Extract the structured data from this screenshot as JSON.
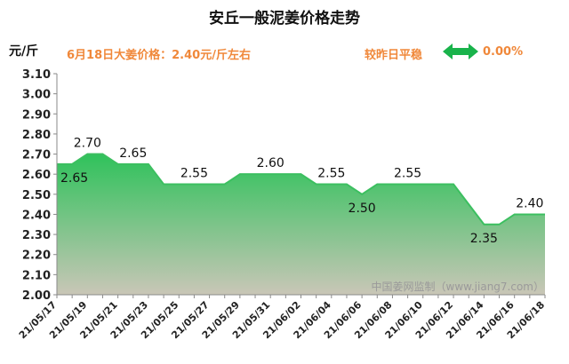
{
  "header": {
    "title": "安丘一般泥姜价格走势",
    "unit": "元/斤",
    "price_note": "6月18日大姜价格：2.40元/斤左右",
    "compare_label": "较昨日平稳",
    "compare_value": "0.00%",
    "accent_color": "#f0883a",
    "arrow_color": "#19b34b",
    "arrow_icon": "double-arrow-icon"
  },
  "watermark": "中国姜网监制（www.jiang7.com）",
  "chart_data": {
    "type": "area",
    "title": "安丘一般泥姜价格走势",
    "ylabel": "元/斤",
    "xlabel": "",
    "ylim": [
      2.0,
      3.1
    ],
    "yticks": [
      "2.00",
      "2.10",
      "2.20",
      "2.30",
      "2.40",
      "2.50",
      "2.60",
      "2.70",
      "2.80",
      "2.90",
      "3.00",
      "3.10"
    ],
    "x_ticks": [
      "21/05/17",
      "21/05/19",
      "21/05/21",
      "21/05/23",
      "21/05/25",
      "21/05/27",
      "21/05/29",
      "21/05/31",
      "21/06/02",
      "21/06/04",
      "21/06/06",
      "21/06/08",
      "21/06/10",
      "21/06/12",
      "21/06/14",
      "21/06/16",
      "21/06/18"
    ],
    "x": [
      "21/05/17",
      "21/05/18",
      "21/05/19",
      "21/05/20",
      "21/05/21",
      "21/05/22",
      "21/05/23",
      "21/05/24",
      "21/05/25",
      "21/05/26",
      "21/05/27",
      "21/05/28",
      "21/05/29",
      "21/05/30",
      "21/05/31",
      "21/06/01",
      "21/06/02",
      "21/06/03",
      "21/06/04",
      "21/06/05",
      "21/06/06",
      "21/06/07",
      "21/06/08",
      "21/06/09",
      "21/06/10",
      "21/06/11",
      "21/06/12",
      "21/06/13",
      "21/06/14",
      "21/06/15",
      "21/06/16",
      "21/06/17",
      "21/06/18"
    ],
    "values": [
      2.65,
      2.65,
      2.7,
      2.7,
      2.65,
      2.65,
      2.65,
      2.55,
      2.55,
      2.55,
      2.55,
      2.55,
      2.6,
      2.6,
      2.6,
      2.6,
      2.6,
      2.55,
      2.55,
      2.55,
      2.5,
      2.55,
      2.55,
      2.55,
      2.55,
      2.55,
      2.55,
      2.45,
      2.35,
      2.35,
      2.4,
      2.4,
      2.4
    ],
    "data_labels": [
      {
        "x": "21/05/17",
        "y": 2.65,
        "text": "2.65",
        "pos": "below"
      },
      {
        "x": "21/05/19",
        "y": 2.7,
        "text": "2.70",
        "pos": "above"
      },
      {
        "x": "21/05/22",
        "y": 2.65,
        "text": "2.65",
        "pos": "above"
      },
      {
        "x": "21/05/26",
        "y": 2.55,
        "text": "2.55",
        "pos": "above"
      },
      {
        "x": "21/05/31",
        "y": 2.6,
        "text": "2.60",
        "pos": "above"
      },
      {
        "x": "21/06/04",
        "y": 2.55,
        "text": "2.55",
        "pos": "above"
      },
      {
        "x": "21/06/06",
        "y": 2.5,
        "text": "2.50",
        "pos": "below"
      },
      {
        "x": "21/06/09",
        "y": 2.55,
        "text": "2.55",
        "pos": "above"
      },
      {
        "x": "21/06/14",
        "y": 2.35,
        "text": "2.35",
        "pos": "below"
      },
      {
        "x": "21/06/17",
        "y": 2.4,
        "text": "2.40",
        "pos": "above"
      }
    ],
    "colors": {
      "line": "#3cbf60",
      "fill_top": "#2fc25b",
      "fill_bottom": "#c9c6b7",
      "axis": "#8a8a8a"
    },
    "grid": false,
    "legend": "none"
  }
}
